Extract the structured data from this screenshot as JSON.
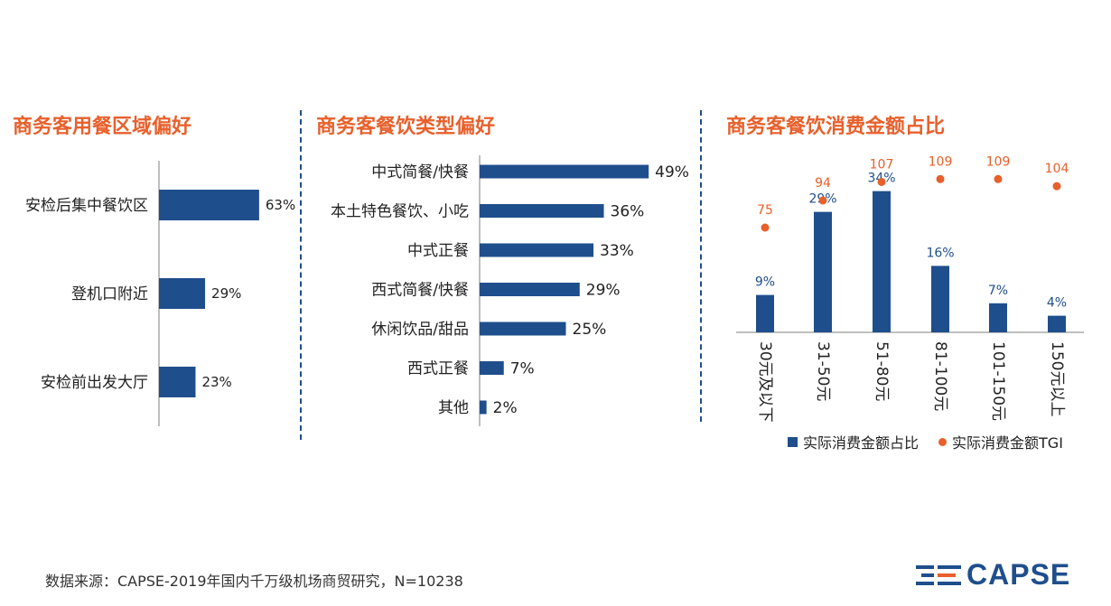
{
  "sources": {
    "text": "数据来源：CAPSE-2019年国内千万级机场商贸研究，N=10238"
  },
  "logo": {
    "text": "CAPSE",
    "accent": "#E8602C",
    "primary": "#1F4E8C"
  },
  "colors": {
    "bar": "#1F4E8C",
    "tgi": "#E8602C",
    "axis": "#BFBFBF"
  },
  "chart_data": [
    {
      "type": "bar",
      "orientation": "horizontal",
      "title": "商务客用餐区域偏好",
      "categories": [
        "安检后集中餐饮区",
        "登机口附近",
        "安检前出发大厅"
      ],
      "values": [
        63,
        29,
        23
      ],
      "labels": [
        "63%",
        "29%",
        "23%"
      ],
      "unit": "%"
    },
    {
      "type": "bar",
      "orientation": "horizontal",
      "title": "商务客餐饮类型偏好",
      "categories": [
        "中式简餐/快餐",
        "本土特色餐饮、小吃",
        "中式正餐",
        "西式简餐/快餐",
        "休闲饮品/甜品",
        "西式正餐",
        "其他"
      ],
      "values": [
        49,
        36,
        33,
        29,
        25,
        7,
        2
      ],
      "labels": [
        "49%",
        "36%",
        "33%",
        "29%",
        "25%",
        "7%",
        "2%"
      ],
      "unit": "%"
    },
    {
      "type": "bar",
      "title": "商务客餐饮消费金额占比",
      "categories": [
        "30元及以下",
        "31-50元",
        "51-80元",
        "81-100元",
        "101-150元",
        "150元以上"
      ],
      "series": [
        {
          "name": "实际消费金额占比",
          "type": "bar",
          "values": [
            9,
            29,
            34,
            16,
            7,
            4
          ],
          "labels": [
            "9%",
            "29%",
            "34%",
            "16%",
            "7%",
            "4%"
          ]
        },
        {
          "name": "实际消费金额TGI",
          "type": "scatter",
          "values": [
            75,
            94,
            107,
            109,
            109,
            104
          ],
          "labels": [
            "75",
            "94",
            "107",
            "109",
            "109",
            "104"
          ]
        }
      ],
      "legend": "bottom"
    }
  ]
}
